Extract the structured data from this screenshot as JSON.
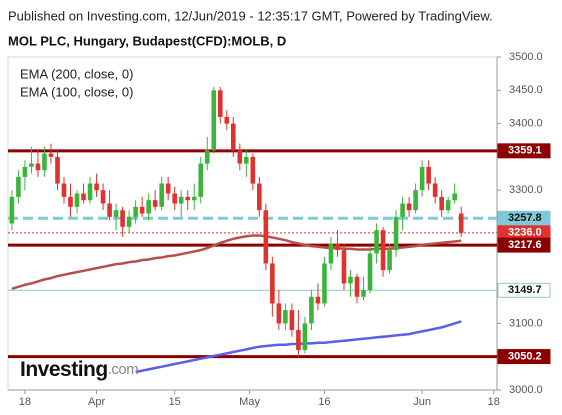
{
  "chart_data": {
    "type": "candlestick",
    "header": "Published on Investing.com, 12/Jun/2019 - 12:35:17 GMT, Powered by TradingView.",
    "title": "MOL PLC, Hungary, Budapest(CFD):MOLB, D",
    "logo": {
      "main": "Investing",
      "suffix": ".com"
    },
    "up_color": "#3cb43c",
    "down_color": "#e0312f",
    "xlim": [
      -0.6,
      74.5
    ],
    "xticks": [
      {
        "value": 2,
        "label": "18"
      },
      {
        "value": 13,
        "label": "Apr"
      },
      {
        "value": 25,
        "label": "15"
      },
      {
        "value": 36.5,
        "label": "May"
      },
      {
        "value": 48,
        "label": "16"
      },
      {
        "value": 63,
        "label": "Jun"
      },
      {
        "value": 74,
        "label": "18"
      }
    ],
    "ylim": [
      3000,
      3500
    ],
    "yticks": [
      {
        "value": 3000,
        "label": "3000.0"
      },
      {
        "value": 3100,
        "label": "3100.0"
      },
      {
        "value": 3300,
        "label": "3300.0"
      },
      {
        "value": 3400,
        "label": "3400.0"
      },
      {
        "value": 3450,
        "label": "3450.0"
      },
      {
        "value": 3500,
        "label": "3500.0"
      }
    ],
    "open": [
      3250,
      3290,
      3320,
      3335,
      3340,
      3330,
      3355,
      3350,
      3310,
      3290,
      3275,
      3295,
      3285,
      3310,
      3300,
      3280,
      3260,
      3270,
      3245,
      3260,
      3275,
      3265,
      3285,
      3275,
      3310,
      3295,
      3280,
      3290,
      3285,
      3290,
      3340,
      3360,
      3450,
      3410,
      3400,
      3360,
      3340,
      3350,
      3310,
      3270,
      3190,
      3130,
      3100,
      3120,
      3090,
      3060,
      3100,
      3140,
      3130,
      3190,
      3220,
      3210,
      3160,
      3170,
      3140,
      3150,
      3205,
      3240,
      3180,
      3210,
      3260,
      3280,
      3270,
      3300,
      3335,
      3310,
      3290,
      3270,
      3285,
      3265
    ],
    "high": [
      3300,
      3330,
      3345,
      3365,
      3360,
      3365,
      3370,
      3360,
      3320,
      3310,
      3300,
      3310,
      3320,
      3325,
      3310,
      3300,
      3280,
      3275,
      3270,
      3285,
      3290,
      3295,
      3300,
      3320,
      3320,
      3305,
      3300,
      3300,
      3310,
      3350,
      3380,
      3455,
      3455,
      3420,
      3410,
      3370,
      3360,
      3355,
      3320,
      3280,
      3200,
      3150,
      3130,
      3130,
      3120,
      3110,
      3150,
      3160,
      3200,
      3230,
      3240,
      3220,
      3180,
      3175,
      3170,
      3215,
      3250,
      3245,
      3220,
      3270,
      3290,
      3290,
      3310,
      3345,
      3345,
      3320,
      3300,
      3290,
      3310,
      3275
    ],
    "low": [
      3240,
      3280,
      3300,
      3325,
      3320,
      3320,
      3340,
      3300,
      3280,
      3260,
      3265,
      3280,
      3280,
      3290,
      3270,
      3255,
      3240,
      3230,
      3235,
      3250,
      3260,
      3255,
      3270,
      3270,
      3285,
      3270,
      3260,
      3270,
      3270,
      3280,
      3330,
      3355,
      3400,
      3390,
      3350,
      3330,
      3320,
      3300,
      3260,
      3180,
      3110,
      3090,
      3090,
      3080,
      3050,
      3055,
      3090,
      3120,
      3125,
      3180,
      3200,
      3150,
      3140,
      3130,
      3135,
      3145,
      3190,
      3170,
      3175,
      3200,
      3240,
      3260,
      3265,
      3290,
      3300,
      3280,
      3260,
      3265,
      3280,
      3230
    ],
    "close": [
      3290,
      3320,
      3335,
      3340,
      3330,
      3355,
      3350,
      3310,
      3290,
      3275,
      3295,
      3285,
      3310,
      3300,
      3280,
      3260,
      3270,
      3245,
      3260,
      3275,
      3265,
      3285,
      3275,
      3310,
      3295,
      3280,
      3290,
      3285,
      3290,
      3340,
      3360,
      3450,
      3410,
      3400,
      3360,
      3340,
      3350,
      3310,
      3270,
      3190,
      3130,
      3100,
      3120,
      3090,
      3060,
      3100,
      3140,
      3130,
      3190,
      3220,
      3210,
      3160,
      3170,
      3140,
      3150,
      3205,
      3240,
      3180,
      3210,
      3260,
      3280,
      3270,
      3300,
      3335,
      3310,
      3290,
      3270,
      3285,
      3295,
      3236
    ],
    "series": [
      {
        "name": "EMA (200, close, 0)",
        "color": "#5b5ee8",
        "values": [
          null,
          null,
          null,
          null,
          null,
          null,
          null,
          null,
          null,
          null,
          null,
          null,
          null,
          null,
          null,
          null,
          null,
          null,
          null,
          3027,
          3029,
          3031,
          3033,
          3035,
          3037,
          3039,
          3041,
          3043,
          3045,
          3047,
          3049,
          3051,
          3053,
          3055,
          3057,
          3059,
          3061,
          3063,
          3065,
          3066,
          3067,
          3068,
          3068,
          3069,
          3069,
          3070,
          3070,
          3071,
          3071,
          3072,
          3073,
          3074,
          3075,
          3076,
          3077,
          3078,
          3079,
          3080,
          3081,
          3082,
          3083,
          3084,
          3086,
          3088,
          3090,
          3092,
          3094,
          3097,
          3100,
          3103
        ]
      },
      {
        "name": "EMA (100, close, 0)",
        "color": "#b5504a",
        "values": [
          3152,
          3155,
          3158,
          3160,
          3163,
          3166,
          3168,
          3171,
          3173,
          3175,
          3177,
          3179,
          3181,
          3183,
          3185,
          3187,
          3189,
          3190,
          3192,
          3193,
          3195,
          3196,
          3198,
          3199,
          3201,
          3202,
          3204,
          3206,
          3208,
          3210,
          3213,
          3217,
          3221,
          3224,
          3227,
          3229,
          3231,
          3232,
          3232,
          3231,
          3229,
          3227,
          3225,
          3222,
          3220,
          3218,
          3216,
          3215,
          3214,
          3213,
          3213,
          3212,
          3212,
          3211,
          3211,
          3211,
          3212,
          3212,
          3212,
          3213,
          3214,
          3215,
          3216,
          3218,
          3219,
          3220,
          3221,
          3222,
          3223,
          3224
        ]
      }
    ],
    "levels": [
      {
        "value": 3359.1,
        "color": "#8b0000",
        "style": "thick"
      },
      {
        "value": 3257.8,
        "color": "#80c8d8",
        "style": "dashed"
      },
      {
        "value": {
          "value": 3236,
          "label": "3236.0"
        },
        "color": "#e0312f",
        "style": "dotted"
      },
      {
        "value": 3217.6,
        "color": "#8b0000",
        "style": "thick"
      },
      {
        "value": 3149.7,
        "color": "#8fc9cc",
        "style": "thin"
      },
      {
        "value": 3050.2,
        "color": "#8b0000",
        "style": "thick"
      }
    ]
  }
}
